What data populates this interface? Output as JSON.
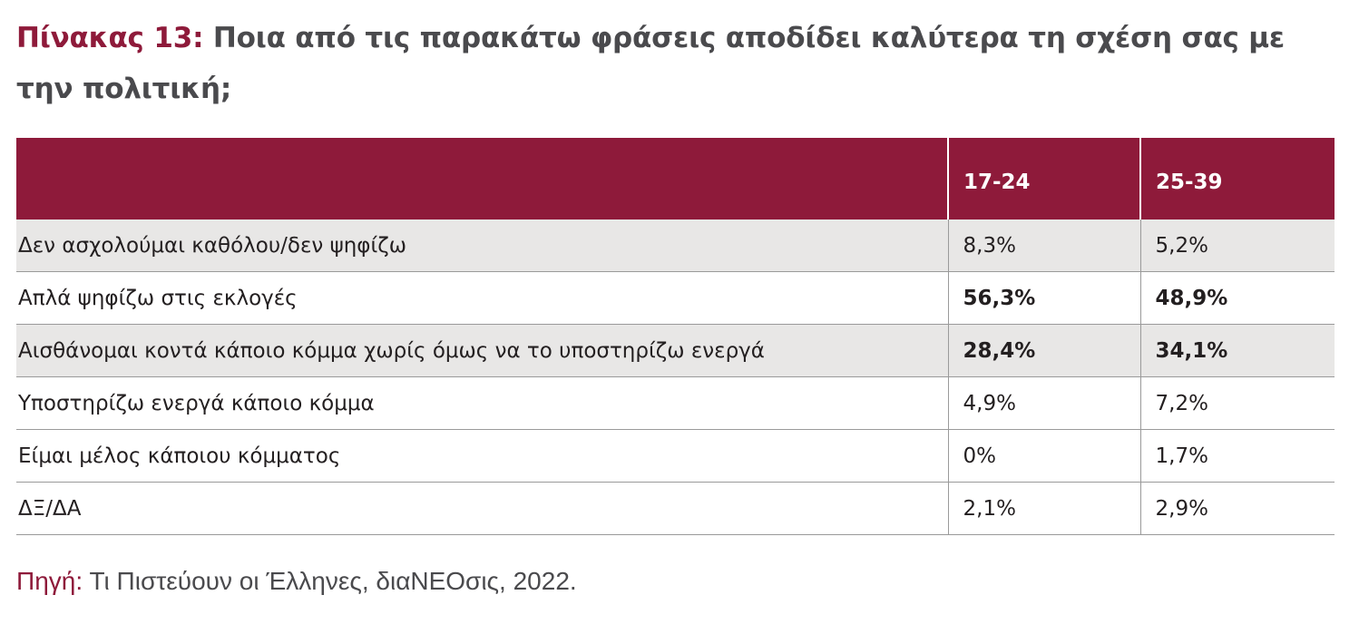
{
  "title": {
    "prefix": "Πίνακας 13:",
    "text": "Ποια από τις παρακάτω φράσεις αποδίδει καλύτερα τη σχέση σας με την πολιτική;"
  },
  "table": {
    "columns": [
      "",
      "17-24",
      "25-39"
    ],
    "rows": [
      {
        "label": "Δεν ασχολούμαι καθόλου/δεν ψηφίζω",
        "v1": "8,3%",
        "v2": "5,2%"
      },
      {
        "label": "Απλά ψηφίζω στις εκλογές",
        "v1": "56,3%",
        "v2": "48,9%"
      },
      {
        "label": "Αισθάνομαι κοντά κάποιο κόμμα χωρίς όμως να το υποστηρίζω ενεργά",
        "v1": "28,4%",
        "v2": "34,1%"
      },
      {
        "label": "Υποστηρίζω ενεργά κάποιο κόμμα",
        "v1": "4,9%",
        "v2": "7,2%"
      },
      {
        "label": "Είμαι μέλος κάποιου κόμματος",
        "v1": "0%",
        "v2": "1,7%"
      },
      {
        "label": "ΔΞ/ΔΑ",
        "v1": "2,1%",
        "v2": "2,9%"
      }
    ]
  },
  "source": {
    "label": "Πηγή:",
    "text": "Τι Πιστεύουν οι Έλληνες, διαΝΕΟσις, 2022."
  },
  "colors": {
    "accent": "#8e1a3a",
    "row_shade": "#e8e7e6",
    "title_gray": "#4a4a4d"
  }
}
